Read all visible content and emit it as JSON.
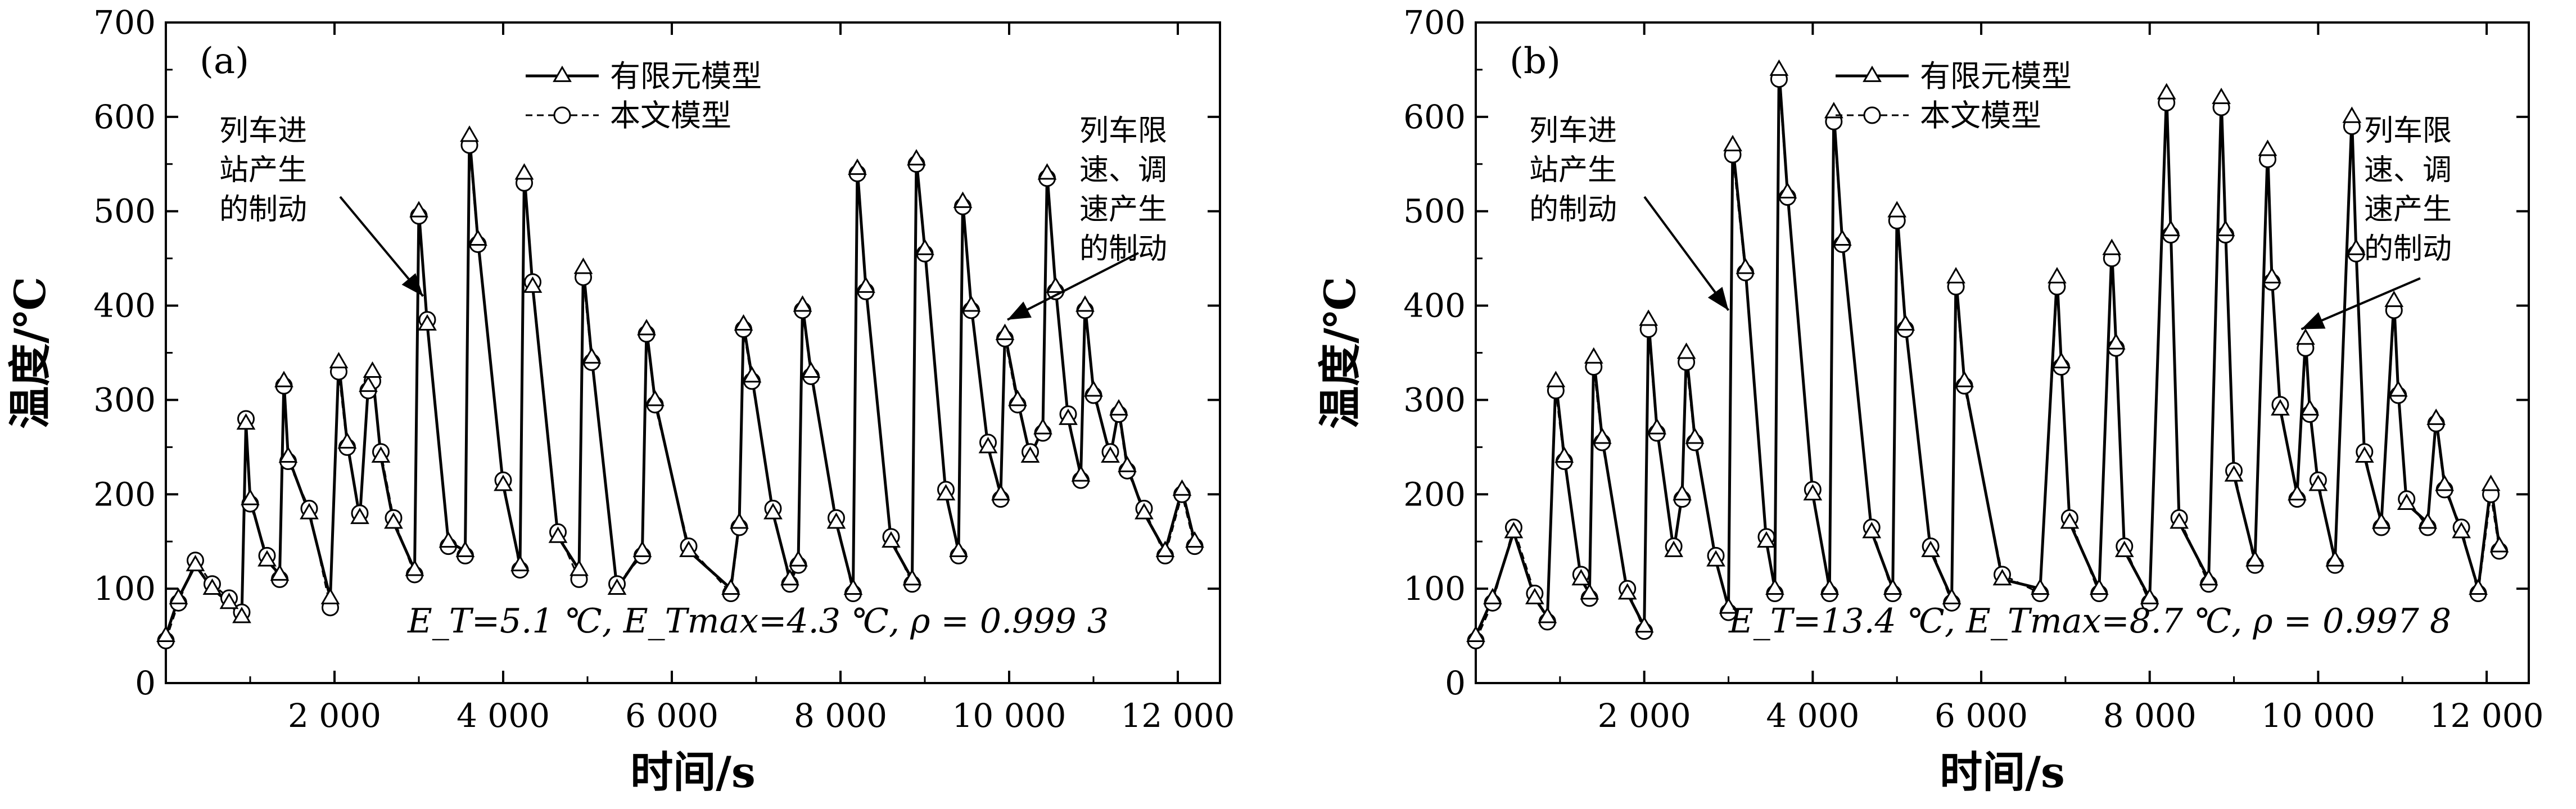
{
  "chart_data": [
    {
      "type": "line",
      "panel_label": "(a)",
      "xlabel": "时间/s",
      "ylabel": "温度/℃",
      "xlim": [
        0,
        12500
      ],
      "ylim": [
        0,
        700
      ],
      "xticks": [
        2000,
        4000,
        6000,
        8000,
        10000,
        12000
      ],
      "xtick_labels": [
        "2 000",
        "4 000",
        "6 000",
        "8 000",
        "10 000",
        "12 000"
      ],
      "yticks": [
        0,
        100,
        200,
        300,
        400,
        500,
        600,
        700
      ],
      "ytick_labels": [
        "0",
        "100",
        "200",
        "300",
        "400",
        "500",
        "600",
        "700"
      ],
      "legend": [
        "有限元模型",
        "本文模型"
      ],
      "annotation_left": [
        "列车进",
        "站产生",
        "的制动"
      ],
      "annotation_right": [
        "列车限",
        "速、调",
        "速产生",
        "的制动"
      ],
      "stats": "E_T=5.1 ℃, E_Tmax=4.3 ℃,  ρ = 0.999 3",
      "series": [
        {
          "name": "有限元模型",
          "x": [
            0,
            150,
            350,
            550,
            750,
            900,
            950,
            1000,
            1200,
            1350,
            1400,
            1450,
            1700,
            1950,
            2050,
            2150,
            2300,
            2400,
            2450,
            2550,
            2700,
            2950,
            3000,
            3100,
            3350,
            3550,
            3600,
            3700,
            4000,
            4200,
            4250,
            4350,
            4650,
            4900,
            4950,
            5050,
            5350,
            5650,
            5700,
            5800,
            6200,
            6700,
            6800,
            6850,
            6950,
            7200,
            7400,
            7500,
            7550,
            7650,
            7950,
            8150,
            8200,
            8300,
            8600,
            8850,
            8900,
            9000,
            9250,
            9400,
            9450,
            9550,
            9750,
            9900,
            9950,
            10100,
            10250,
            10400,
            10450,
            10550,
            10700,
            10850,
            10900,
            11000,
            11200,
            11300,
            11400,
            11600,
            11850,
            12050,
            12200
          ],
          "values": [
            50,
            90,
            125,
            100,
            85,
            70,
            275,
            195,
            130,
            115,
            320,
            240,
            180,
            90,
            340,
            255,
            175,
            315,
            330,
            240,
            170,
            120,
            500,
            380,
            150,
            140,
            580,
            470,
            210,
            125,
            540,
            420,
            155,
            120,
            440,
            345,
            100,
            140,
            375,
            300,
            140,
            100,
            170,
            380,
            325,
            180,
            110,
            130,
            400,
            330,
            170,
            100,
            545,
            420,
            150,
            110,
            555,
            460,
            200,
            140,
            510,
            400,
            250,
            200,
            370,
            300,
            240,
            270,
            540,
            420,
            280,
            220,
            400,
            310,
            240,
            290,
            230,
            180,
            140,
            205,
            150
          ]
        },
        {
          "name": "本文模型",
          "x": [
            0,
            150,
            350,
            550,
            750,
            900,
            950,
            1000,
            1200,
            1350,
            1400,
            1450,
            1700,
            1950,
            2050,
            2150,
            2300,
            2400,
            2450,
            2550,
            2700,
            2950,
            3000,
            3100,
            3350,
            3550,
            3600,
            3700,
            4000,
            4200,
            4250,
            4350,
            4650,
            4900,
            4950,
            5050,
            5350,
            5650,
            5700,
            5800,
            6200,
            6700,
            6800,
            6850,
            6950,
            7200,
            7400,
            7500,
            7550,
            7650,
            7950,
            8150,
            8200,
            8300,
            8600,
            8850,
            8900,
            9000,
            9250,
            9400,
            9450,
            9550,
            9750,
            9900,
            9950,
            10100,
            10250,
            10400,
            10450,
            10550,
            10700,
            10850,
            10900,
            11000,
            11200,
            11300,
            11400,
            11600,
            11850,
            12050,
            12200
          ],
          "values": [
            45,
            85,
            130,
            105,
            90,
            75,
            280,
            190,
            135,
            110,
            315,
            235,
            185,
            80,
            330,
            250,
            180,
            310,
            320,
            245,
            175,
            115,
            495,
            385,
            145,
            135,
            570,
            465,
            215,
            120,
            530,
            425,
            160,
            110,
            430,
            340,
            105,
            135,
            370,
            295,
            145,
            95,
            165,
            375,
            320,
            185,
            105,
            125,
            395,
            325,
            175,
            95,
            540,
            415,
            155,
            105,
            550,
            455,
            205,
            135,
            505,
            395,
            255,
            195,
            365,
            295,
            245,
            265,
            535,
            415,
            285,
            215,
            395,
            305,
            245,
            285,
            225,
            185,
            135,
            200,
            145
          ]
        }
      ]
    },
    {
      "type": "line",
      "panel_label": "(b)",
      "xlabel": "时间/s",
      "ylabel": "温度/℃",
      "xlim": [
        0,
        12500
      ],
      "ylim": [
        0,
        700
      ],
      "xticks": [
        2000,
        4000,
        6000,
        8000,
        10000,
        12000
      ],
      "xtick_labels": [
        "2 000",
        "4 000",
        "6 000",
        "8 000",
        "10 000",
        "12 000"
      ],
      "yticks": [
        0,
        100,
        200,
        300,
        400,
        500,
        600,
        700
      ],
      "ytick_labels": [
        "0",
        "100",
        "200",
        "300",
        "400",
        "500",
        "600",
        "700"
      ],
      "legend": [
        "有限元模型",
        "本文模型"
      ],
      "annotation_left": [
        "列车进",
        "站产生",
        "的制动"
      ],
      "annotation_right": [
        "列车限",
        "速、调",
        "速产生",
        "的制动"
      ],
      "stats": "E_T=13.4 ℃, E_Tmax=8.7 ℃,  ρ = 0.997 8",
      "series": [
        {
          "name": "有限元模型",
          "x": [
            0,
            200,
            450,
            700,
            850,
            950,
            1050,
            1250,
            1350,
            1400,
            1500,
            1800,
            2000,
            2050,
            2150,
            2350,
            2450,
            2500,
            2600,
            2850,
            3000,
            3050,
            3200,
            3450,
            3550,
            3600,
            3700,
            4000,
            4200,
            4250,
            4350,
            4700,
            4950,
            5000,
            5100,
            5400,
            5650,
            5700,
            5800,
            6250,
            6700,
            6900,
            6950,
            7050,
            7400,
            7550,
            7600,
            7700,
            8000,
            8200,
            8250,
            8350,
            8700,
            8850,
            8900,
            9000,
            9250,
            9400,
            9450,
            9550,
            9750,
            9850,
            9900,
            10000,
            10200,
            10400,
            10450,
            10550,
            10750,
            10900,
            10950,
            11050,
            11300,
            11400,
            11500,
            11700,
            11900,
            12050,
            12150
          ],
          "values": [
            50,
            90,
            160,
            90,
            70,
            320,
            240,
            110,
            95,
            345,
            260,
            95,
            60,
            385,
            270,
            140,
            200,
            350,
            260,
            130,
            80,
            570,
            440,
            150,
            100,
            650,
            520,
            200,
            100,
            605,
            470,
            160,
            100,
            500,
            380,
            140,
            90,
            430,
            320,
            110,
            100,
            430,
            340,
            170,
            100,
            460,
            360,
            140,
            90,
            625,
            480,
            170,
            110,
            620,
            480,
            220,
            130,
            565,
            430,
            290,
            200,
            365,
            290,
            210,
            130,
            600,
            460,
            240,
            170,
            405,
            310,
            190,
            170,
            280,
            210,
            160,
            100,
            210,
            145
          ]
        },
        {
          "name": "本文模型",
          "x": [
            0,
            200,
            450,
            700,
            850,
            950,
            1050,
            1250,
            1350,
            1400,
            1500,
            1800,
            2000,
            2050,
            2150,
            2350,
            2450,
            2500,
            2600,
            2850,
            3000,
            3050,
            3200,
            3450,
            3550,
            3600,
            3700,
            4000,
            4200,
            4250,
            4350,
            4700,
            4950,
            5000,
            5100,
            5400,
            5650,
            5700,
            5800,
            6250,
            6700,
            6900,
            6950,
            7050,
            7400,
            7550,
            7600,
            7700,
            8000,
            8200,
            8250,
            8350,
            8700,
            8850,
            8900,
            9000,
            9250,
            9400,
            9450,
            9550,
            9750,
            9850,
            9900,
            10000,
            10200,
            10400,
            10450,
            10550,
            10750,
            10900,
            10950,
            11050,
            11300,
            11400,
            11500,
            11700,
            11900,
            12050,
            12150
          ],
          "values": [
            45,
            85,
            165,
            95,
            65,
            310,
            235,
            115,
            90,
            335,
            255,
            100,
            55,
            375,
            265,
            145,
            195,
            340,
            255,
            135,
            75,
            560,
            435,
            155,
            95,
            640,
            515,
            205,
            95,
            595,
            465,
            165,
            95,
            490,
            375,
            145,
            85,
            420,
            315,
            115,
            95,
            420,
            335,
            175,
            95,
            450,
            355,
            145,
            85,
            615,
            475,
            175,
            105,
            610,
            475,
            225,
            125,
            555,
            425,
            295,
            195,
            355,
            285,
            215,
            125,
            590,
            455,
            245,
            165,
            395,
            305,
            195,
            165,
            275,
            205,
            165,
            95,
            200,
            140
          ]
        }
      ]
    }
  ]
}
